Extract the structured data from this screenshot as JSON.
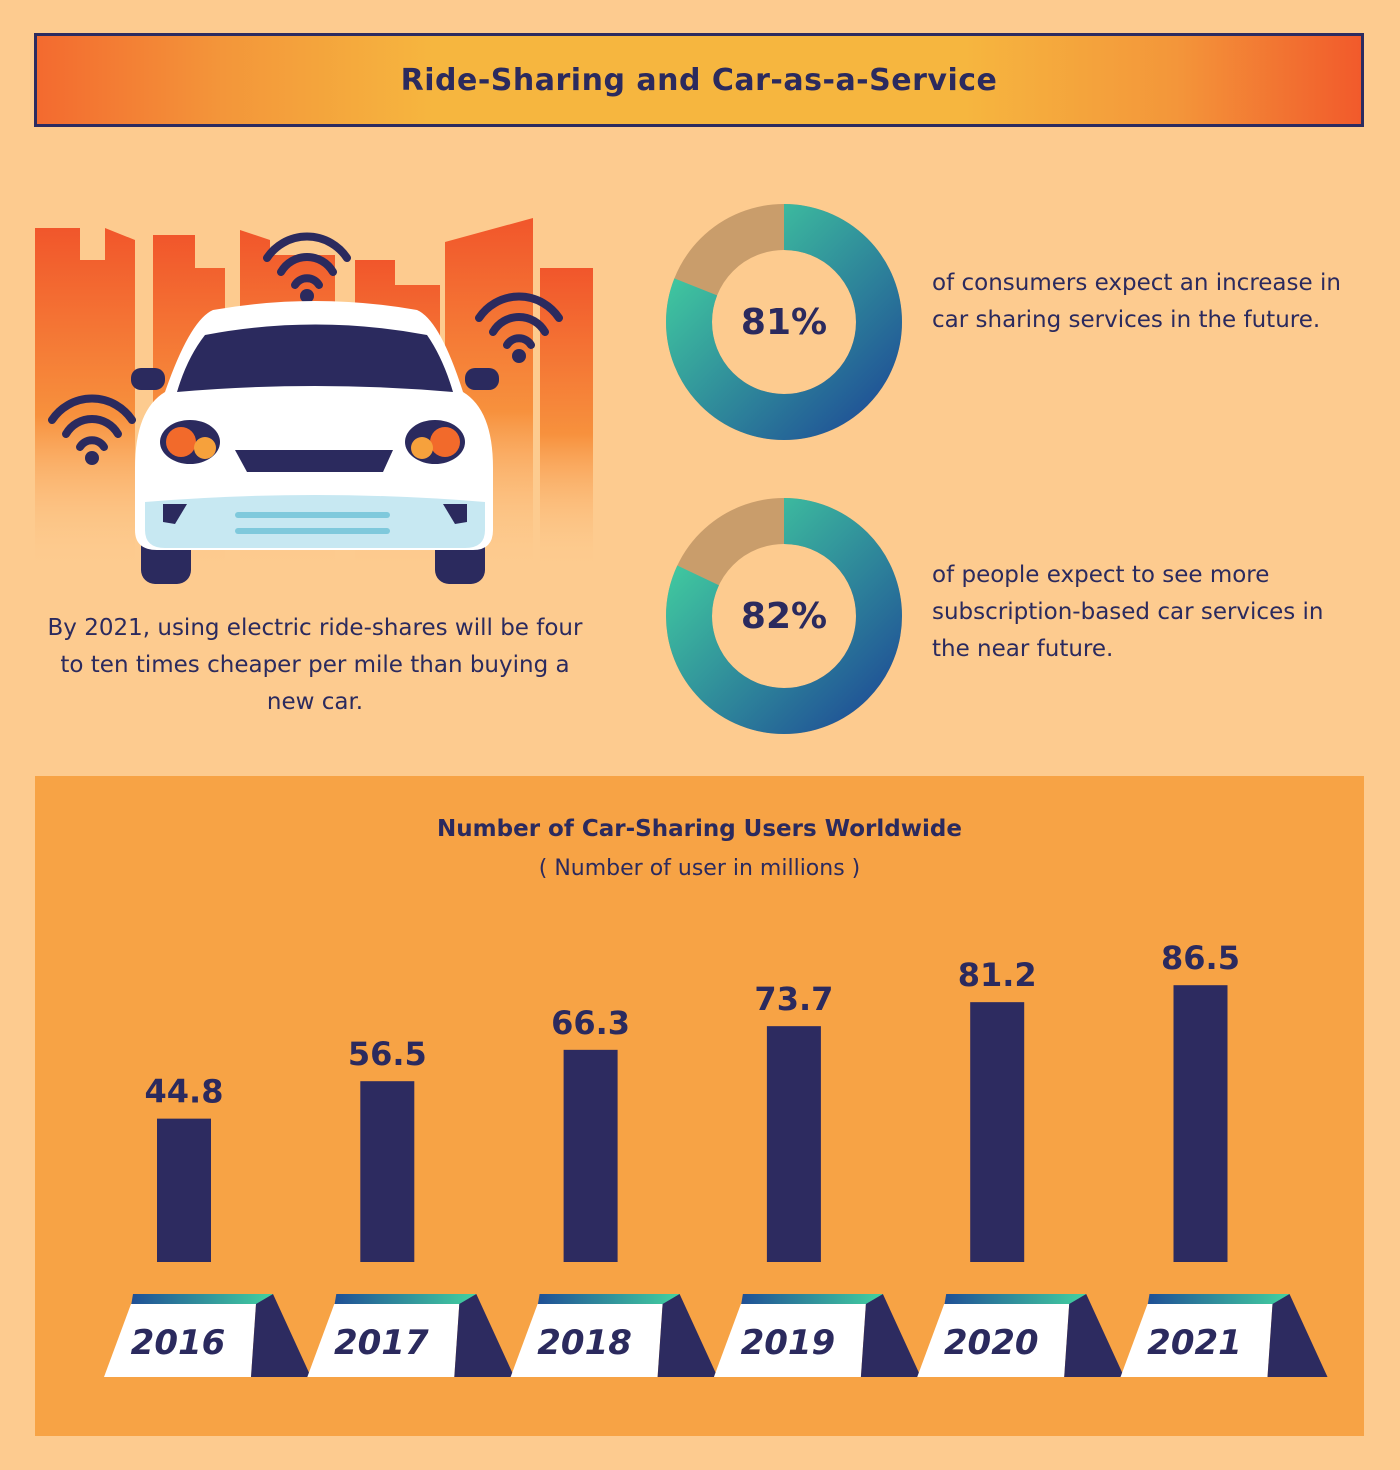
{
  "header": {
    "title": "Ride-Sharing and Car-as-a-Service"
  },
  "hero": {
    "caption": "By 2021, using electric ride-shares will be four to ten times cheaper per mile than buying a new car."
  },
  "stats": [
    {
      "value": "81%",
      "fraction": 0.81,
      "text": "of consumers expect an increase in car sharing services in the future."
    },
    {
      "value": "82%",
      "fraction": 0.82,
      "text": "of people expect to see more subscription-based car services in the near future."
    }
  ],
  "colors": {
    "background": "#fdcb8f",
    "panel": "#f7a345",
    "navy": "#2b2a5e",
    "teal": "#3fc7a0",
    "blue": "#1f5e9a",
    "remainder": "#c99d6b",
    "city_red": "#f1562b"
  },
  "icons": [
    "wifi-icon",
    "car-icon",
    "city-skyline"
  ],
  "chart_data": {
    "type": "bar",
    "title": "Number of Car-Sharing Users Worldwide",
    "subtitle": "( Number of user in millions )",
    "categories": [
      "2016",
      "2017",
      "2018",
      "2019",
      "2020",
      "2021"
    ],
    "values": [
      44.8,
      56.5,
      66.3,
      73.7,
      81.2,
      86.5
    ],
    "value_labels": [
      "44.8",
      "56.5",
      "66.3",
      "73.7",
      "81.2",
      "86.5"
    ],
    "ylim": [
      0,
      100
    ],
    "grid": false,
    "bar_color": "#2d2b60"
  }
}
